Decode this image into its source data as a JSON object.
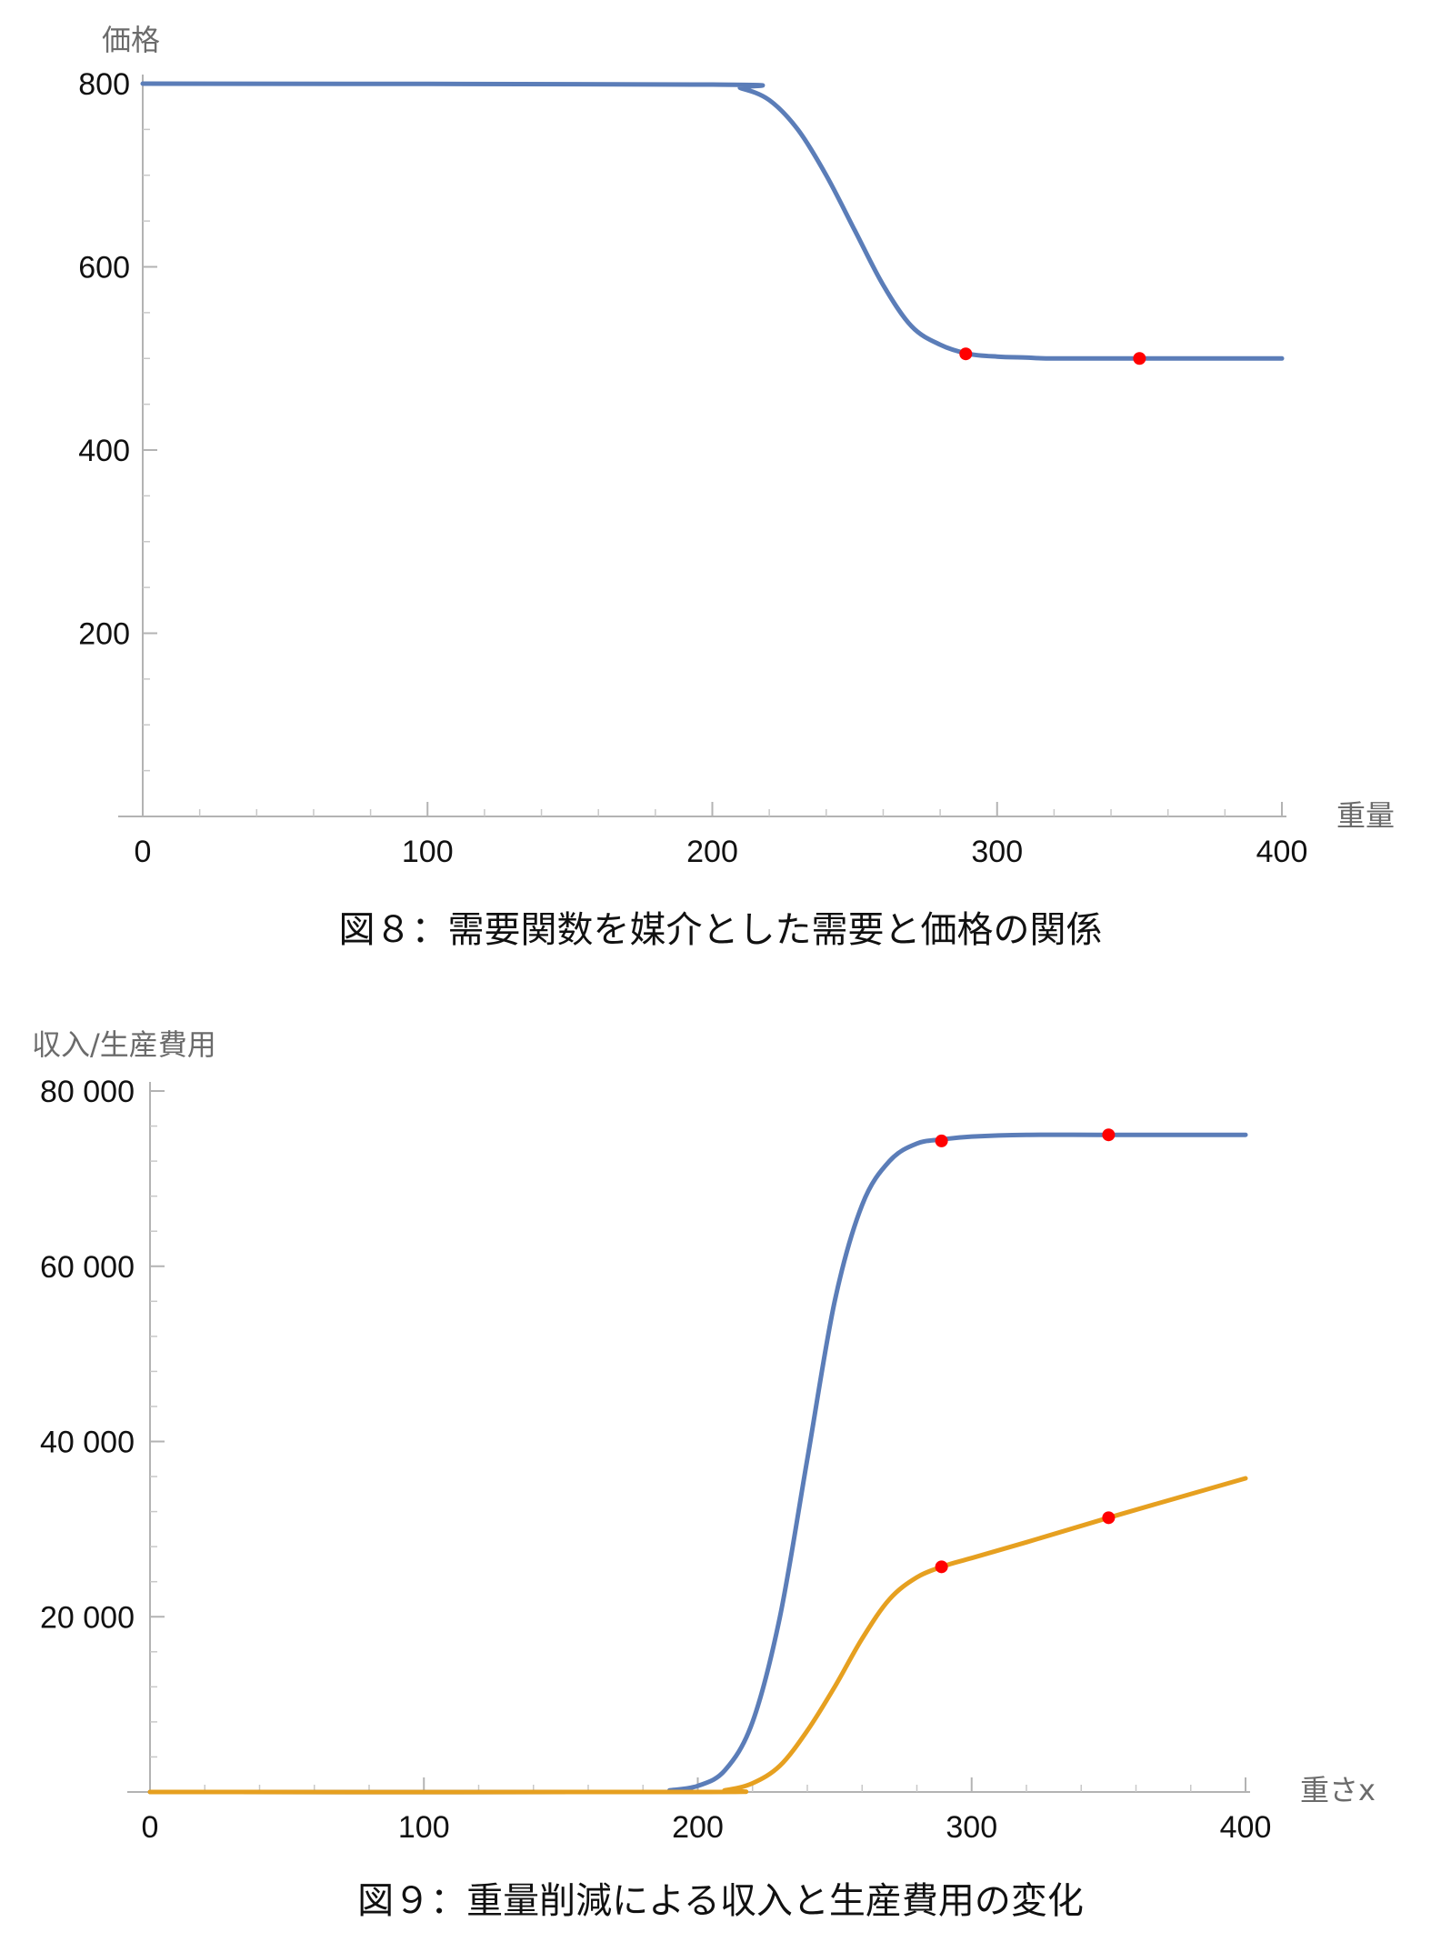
{
  "chart_data": [
    {
      "type": "line",
      "caption": "図８：需要関数を媒介とした需要と価格の関係",
      "xlabel": "重量",
      "ylabel": "価格",
      "xlim": [
        0,
        400
      ],
      "ylim": [
        0,
        800
      ],
      "xticks": [
        0,
        100,
        200,
        300,
        400
      ],
      "yticks": [
        200,
        400,
        600,
        800
      ],
      "grid": false,
      "series": [
        {
          "color": "#5b7db8",
          "x": [
            0,
            200,
            210,
            220,
            230,
            240,
            250,
            260,
            270,
            280,
            290,
            300,
            310,
            320,
            350,
            400
          ],
          "y": [
            800,
            799,
            795,
            782,
            750,
            700,
            640,
            580,
            535,
            515,
            505,
            502,
            501,
            500,
            500,
            500
          ],
          "markers": [
            {
              "x": 289,
              "y": 505
            },
            {
              "x": 350,
              "y": 500
            }
          ],
          "marker_color": "#ff0000"
        }
      ]
    },
    {
      "type": "line",
      "caption": "図９：重量削減による収入と生産費用の変化",
      "xlabel": "重さx",
      "ylabel": "収入/生産費用",
      "xlim": [
        0,
        400
      ],
      "ylim": [
        0,
        80000
      ],
      "xticks": [
        0,
        100,
        200,
        300,
        400
      ],
      "ytick_labels": [
        "20 000",
        "40 000",
        "60 000",
        "80 000"
      ],
      "yticks": [
        20000,
        40000,
        60000,
        80000
      ],
      "grid": false,
      "series": [
        {
          "color": "#5b7db8",
          "x": [
            0,
            180,
            190,
            200,
            210,
            220,
            230,
            240,
            250,
            260,
            270,
            280,
            290,
            300,
            320,
            350,
            400
          ],
          "y": [
            0,
            0,
            200,
            700,
            2500,
            8000,
            20000,
            38000,
            56000,
            67000,
            72000,
            74000,
            74500,
            74800,
            75000,
            75000,
            75000
          ],
          "markers": [
            {
              "x": 289,
              "y": 74300
            },
            {
              "x": 350,
              "y": 75000
            }
          ],
          "marker_color": "#ff0000"
        },
        {
          "color": "#e6a020",
          "x": [
            0,
            200,
            210,
            220,
            230,
            240,
            250,
            260,
            270,
            280,
            290,
            300,
            320,
            350,
            400
          ],
          "y": [
            0,
            0,
            200,
            1000,
            3000,
            7000,
            12000,
            17500,
            22000,
            24500,
            25800,
            26700,
            28500,
            31300,
            35800
          ],
          "markers": [
            {
              "x": 289,
              "y": 25700
            },
            {
              "x": 350,
              "y": 31300
            }
          ],
          "marker_color": "#ff0000"
        }
      ]
    }
  ]
}
